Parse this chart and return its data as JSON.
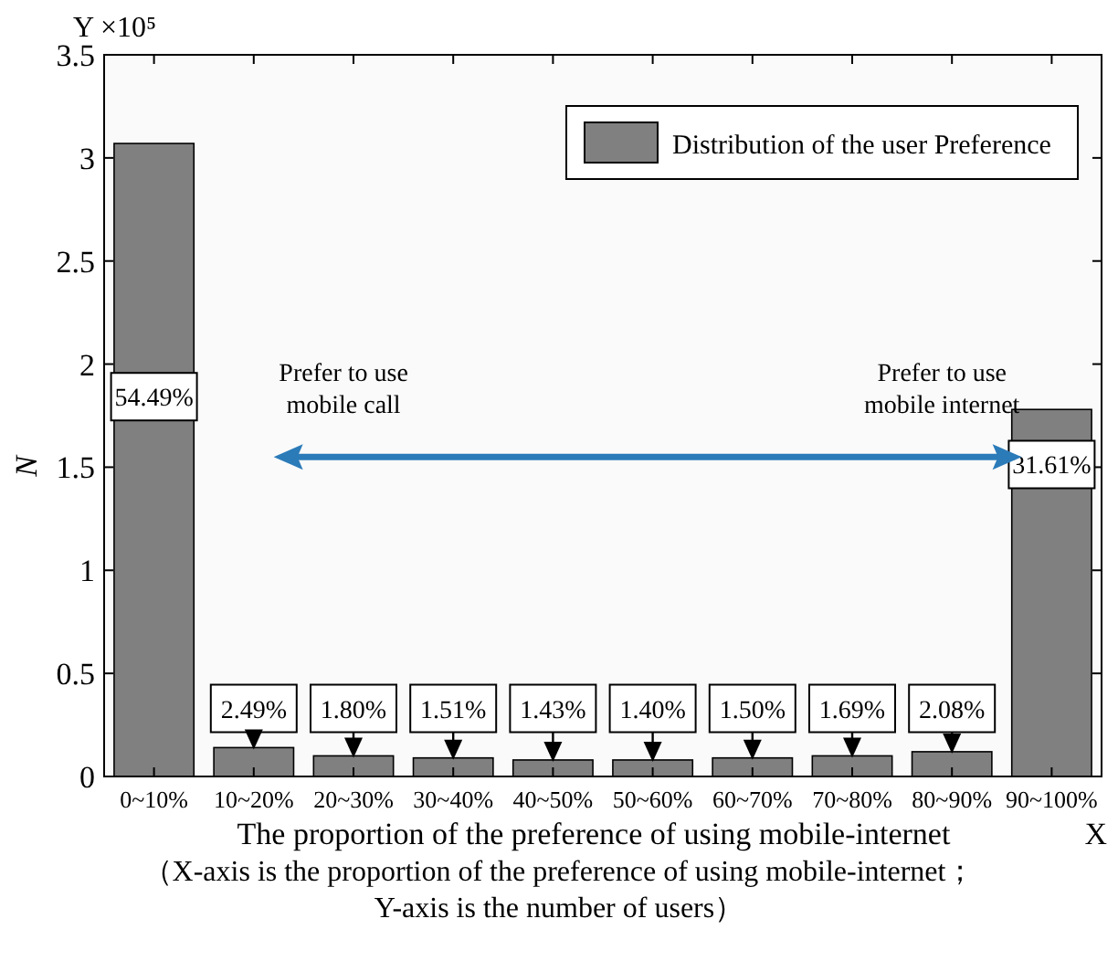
{
  "chart_data": {
    "type": "bar",
    "categories": [
      "0~10%",
      "10~20%",
      "20~30%",
      "30~40%",
      "40~50%",
      "50~60%",
      "60~70%",
      "70~80%",
      "80~90%",
      "90~100%"
    ],
    "series": [
      {
        "name": "Distribution of the user Preference",
        "color": "#808080",
        "values": [
          3.07,
          0.14,
          0.1,
          0.09,
          0.08,
          0.08,
          0.09,
          0.1,
          0.12,
          1.78
        ]
      }
    ],
    "value_labels": [
      "54.49%",
      "2.49%",
      "1.80%",
      "1.51%",
      "1.43%",
      "1.40%",
      "1.50%",
      "1.69%",
      "2.08%",
      "31.61%"
    ],
    "xlabel": "The proportion of the preference of using mobile-internet",
    "ylabel": "N",
    "ylim": [
      0,
      3.5
    ],
    "yticks": [
      0,
      0.5,
      1,
      1.5,
      2,
      2.5,
      3,
      3.5
    ],
    "legend": "top right",
    "grid": false,
    "annotations": [
      "Y ×10⁵",
      "X",
      "Prefer to use\nmobile call",
      "Prefer to use\nmobile internet",
      "（X-axis is the proportion of the preference of using mobile-internet；\nY-axis is the number of users）"
    ]
  }
}
